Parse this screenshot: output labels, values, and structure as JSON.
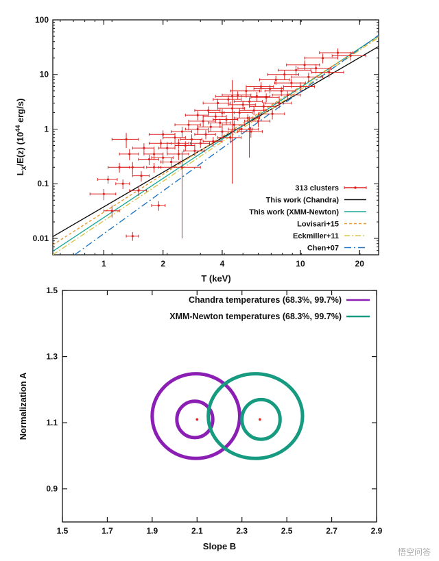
{
  "chart_data": [
    {
      "type": "scatter",
      "title": "",
      "xlabel": "T (keV)",
      "ylabel_parts": [
        "L",
        "X",
        "/E(z) (10",
        "44",
        " erg/s)"
      ],
      "xscale": "log",
      "yscale": "log",
      "xlim": [
        0.55,
        25
      ],
      "ylim": [
        0.005,
        100
      ],
      "xticks": [
        1,
        2,
        4,
        10,
        20
      ],
      "xtick_labels": [
        "1",
        "2",
        "4",
        "10",
        "20"
      ],
      "yticks": [
        0.01,
        0.1,
        1,
        10,
        100
      ],
      "ytick_labels": [
        "0.01",
        "0.1",
        "1",
        "10",
        "100"
      ],
      "legend_position": "bottom-right",
      "scatter_series": {
        "name": "313 clusters",
        "color": "#dd2222",
        "points": [
          [
            1.0,
            0.065,
            0.15,
            0.015
          ],
          [
            1.05,
            0.12,
            0.12,
            0.02
          ],
          [
            1.1,
            0.032,
            0.1,
            0.008
          ],
          [
            1.2,
            0.2,
            0.15,
            0.04
          ],
          [
            1.25,
            0.1,
            0.1,
            0.02
          ],
          [
            1.3,
            0.65,
            0.2,
            0.2
          ],
          [
            1.35,
            0.35,
            0.15,
            0.08
          ],
          [
            1.4,
            0.2,
            0.2,
            0.05
          ],
          [
            1.4,
            0.011,
            0.1,
            0.002
          ],
          [
            1.5,
            0.075,
            0.15,
            0.015
          ],
          [
            1.55,
            0.14,
            0.15,
            0.03
          ],
          [
            1.6,
            0.45,
            0.2,
            0.1
          ],
          [
            1.7,
            0.28,
            0.2,
            0.06
          ],
          [
            1.8,
            0.35,
            0.2,
            0.08
          ],
          [
            1.8,
            0.2,
            0.15,
            0.04
          ],
          [
            1.9,
            0.04,
            0.15,
            0.008
          ],
          [
            1.95,
            0.55,
            0.25,
            0.1
          ],
          [
            2.0,
            0.3,
            0.25,
            0.07
          ],
          [
            2.0,
            0.8,
            0.3,
            0.15
          ],
          [
            2.1,
            0.45,
            0.2,
            0.1
          ],
          [
            2.2,
            0.25,
            0.25,
            0.05
          ],
          [
            2.3,
            0.7,
            0.3,
            0.15
          ],
          [
            2.4,
            0.35,
            0.3,
            0.08
          ],
          [
            2.5,
            0.2,
            0.6,
            0.19
          ],
          [
            2.5,
            0.9,
            0.3,
            0.2
          ],
          [
            2.6,
            0.5,
            0.3,
            0.1
          ],
          [
            2.7,
            1.2,
            0.4,
            0.25
          ],
          [
            2.8,
            0.65,
            0.35,
            0.15
          ],
          [
            2.9,
            0.4,
            0.35,
            0.08
          ],
          [
            3.0,
            1.0,
            0.4,
            0.2
          ],
          [
            3.0,
            1.8,
            0.4,
            0.35
          ],
          [
            3.1,
            0.55,
            0.35,
            0.1
          ],
          [
            3.2,
            1.4,
            0.5,
            0.3
          ],
          [
            3.3,
            0.8,
            0.4,
            0.15
          ],
          [
            3.4,
            2.2,
            0.5,
            0.4
          ],
          [
            3.5,
            1.1,
            0.5,
            0.2
          ],
          [
            3.6,
            0.6,
            0.4,
            0.12
          ],
          [
            3.7,
            1.7,
            0.5,
            0.3
          ],
          [
            3.8,
            3.0,
            0.6,
            0.6
          ],
          [
            3.9,
            1.3,
            0.5,
            0.25
          ],
          [
            4.0,
            0.9,
            0.6,
            0.2
          ],
          [
            4.0,
            2.0,
            0.6,
            0.35
          ],
          [
            4.2,
            1.5,
            0.6,
            0.3
          ],
          [
            4.3,
            3.5,
            0.7,
            0.6
          ],
          [
            4.4,
            0.7,
            0.6,
            0.15
          ],
          [
            4.5,
            2.4,
            0.7,
            0.4
          ],
          [
            4.6,
            1.2,
            0.6,
            0.25
          ],
          [
            4.8,
            4.2,
            0.8,
            0.7
          ],
          [
            4.9,
            2.0,
            0.8,
            0.4
          ],
          [
            5.0,
            1.0,
            0.7,
            0.2
          ],
          [
            5.1,
            2.8,
            0.8,
            0.5
          ],
          [
            5.3,
            5.0,
            0.9,
            0.9
          ],
          [
            5.4,
            1.6,
            0.8,
            0.3
          ],
          [
            5.5,
            3.2,
            0.9,
            0.6
          ],
          [
            5.6,
            0.9,
            0.8,
            0.2
          ],
          [
            5.8,
            2.2,
            0.9,
            0.4
          ],
          [
            6.0,
            4.0,
            1.0,
            0.8
          ],
          [
            6.1,
            1.4,
            0.9,
            0.3
          ],
          [
            6.3,
            6.0,
            1.0,
            1.2
          ],
          [
            6.5,
            2.6,
            1.0,
            0.5
          ],
          [
            6.7,
            3.8,
            1.1,
            0.7
          ],
          [
            7.0,
            5.5,
            1.2,
            1.0
          ],
          [
            7.2,
            1.9,
            1.1,
            0.4
          ],
          [
            7.5,
            8.0,
            1.3,
            1.5
          ],
          [
            7.8,
            3.0,
            1.2,
            0.6
          ],
          [
            8.0,
            5.0,
            1.4,
            1.0
          ],
          [
            8.3,
            10.0,
            1.5,
            2.0
          ],
          [
            8.6,
            4.2,
            1.4,
            0.8
          ],
          [
            9.0,
            7.0,
            1.6,
            1.4
          ],
          [
            9.5,
            12.0,
            1.8,
            2.5
          ],
          [
            10.0,
            6.0,
            1.8,
            1.2
          ],
          [
            10.5,
            15.0,
            2.0,
            3.0
          ],
          [
            11.0,
            9.0,
            2.0,
            1.8
          ],
          [
            12.0,
            13.0,
            2.3,
            2.5
          ],
          [
            13.0,
            20.0,
            2.5,
            4.0
          ],
          [
            14.0,
            11.0,
            2.6,
            2.2
          ],
          [
            15.5,
            25.0,
            3.0,
            5.0
          ],
          [
            18.0,
            22.0,
            3.5,
            4.0
          ],
          [
            4.5,
            4.0,
            0.8,
            3.9
          ],
          [
            5.5,
            1.0,
            0.6,
            0.7
          ],
          [
            2.4,
            0.55,
            0.3,
            0.11
          ]
        ]
      },
      "relations": [
        {
          "name": "This work (Chandra)",
          "color": "#111111",
          "dash": "",
          "norm": 1.11,
          "slope": 2.1
        },
        {
          "name": "This work (XMM-Newton)",
          "color": "#1aa89a",
          "dash": "",
          "norm": 1.11,
          "slope": 2.38
        },
        {
          "name": "Lovisari+15",
          "color": "#e69a2e",
          "dash": "4,3",
          "norm": 1.22,
          "slope": 2.3
        },
        {
          "name": "Eckmiller+11",
          "color": "#d6c64a",
          "dash": "8,3,2,3",
          "norm": 1.0,
          "slope": 2.4
        },
        {
          "name": "Chen+07",
          "color": "#1f77c4",
          "dash": "10,4,2,4",
          "norm": 0.8,
          "slope": 2.6
        }
      ]
    },
    {
      "type": "scatter",
      "title": "",
      "xlabel": "Slope B",
      "ylabel": "Normalization A",
      "xlim": [
        1.5,
        2.9
      ],
      "ylim": [
        0.8,
        1.5
      ],
      "xticks": [
        1.5,
        1.7,
        1.9,
        2.1,
        2.3,
        2.5,
        2.7,
        2.9
      ],
      "xtick_labels": [
        "1.5",
        "1.7",
        "1.9",
        "2.1",
        "2.3",
        "2.5",
        "2.7",
        "2.9"
      ],
      "yticks": [
        0.9,
        1.1,
        1.3,
        1.5
      ],
      "ytick_labels": [
        "0.9",
        "1.1",
        "1.3",
        "1.5"
      ],
      "legend_position": "top-right",
      "contours": [
        {
          "name": "Chandra temperatures (68.3%, 99.7%)",
          "color": "#8b1fb4",
          "center": [
            2.1,
            1.11
          ],
          "ellipses": [
            {
              "cx": 2.09,
              "cy": 1.11,
              "rx": 0.08,
              "ry": 0.055
            },
            {
              "cx": 2.095,
              "cy": 1.12,
              "rx": 0.195,
              "ry": 0.128
            }
          ]
        },
        {
          "name": "XMM-Newton temperatures (68.3%, 99.7%)",
          "color": "#169a80",
          "center": [
            2.38,
            1.11
          ],
          "ellipses": [
            {
              "cx": 2.385,
              "cy": 1.11,
              "rx": 0.085,
              "ry": 0.06
            },
            {
              "cx": 2.36,
              "cy": 1.12,
              "rx": 0.21,
              "ry": 0.128
            }
          ]
        }
      ]
    }
  ],
  "watermark": "悟空问答"
}
